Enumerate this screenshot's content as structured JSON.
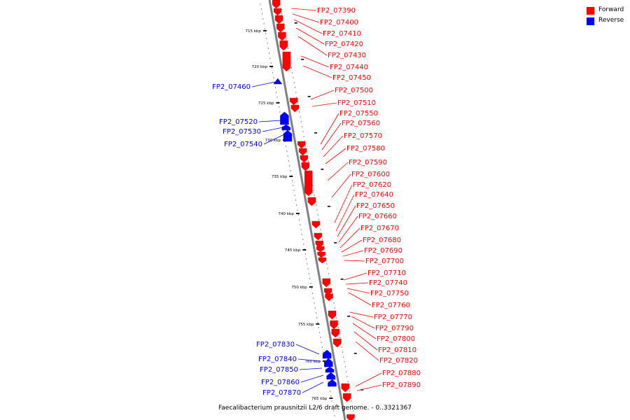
{
  "legend": {
    "forward_label": "Forward",
    "reverse_label": "Reverse",
    "forward_color": "#ff0000",
    "reverse_color": "#0000ff"
  },
  "caption": "Faecalibacterium prausnitzii L2/6 draft genome. - 0..3321367",
  "chart_data": {
    "type": "linear-genome-map",
    "strand_colors": {
      "forward": "#ff0000",
      "reverse": "#0000ff"
    },
    "tick_labels": [
      "715 kbp",
      "720 kbp",
      "725 kbp",
      "730 kbp",
      "735 kbp",
      "740 kbp",
      "745 kbp",
      "750 kbp",
      "755 kbp",
      "760 kbp",
      "765 kbp"
    ],
    "forward_genes": [
      "FP2_07390",
      "FP2_07400",
      "FP2_07410",
      "FP2_07420",
      "FP2_07430",
      "FP2_07440",
      "FP2_07450",
      "FP2_07500",
      "FP2_07510",
      "FP2_07550",
      "FP2_07560",
      "FP2_07570",
      "FP2_07580",
      "FP2_07590",
      "FP2_07600",
      "FP2_07620",
      "FP2_07640",
      "FP2_07650",
      "FP2_07660",
      "FP2_07670",
      "FP2_07680",
      "FP2_07690",
      "FP2_07700",
      "FP2_07710",
      "FP2_07740",
      "FP2_07750",
      "FP2_07760",
      "FP2_07770",
      "FP2_07790",
      "FP2_07800",
      "FP2_07810",
      "FP2_07820",
      "FP2_07880",
      "FP2_07890"
    ],
    "reverse_genes": [
      "FP2_07460",
      "FP2_07520",
      "FP2_07530",
      "FP2_07540",
      "FP2_07830",
      "FP2_07840",
      "FP2_07850",
      "FP2_07860",
      "FP2_07870"
    ]
  }
}
